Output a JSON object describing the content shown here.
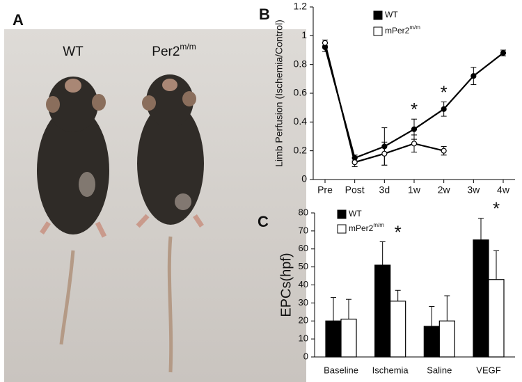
{
  "panel_a": {
    "label": "A",
    "left_label": "WT",
    "right_label": "Per2",
    "right_label_superscript": "m/m"
  },
  "chart_data": [
    {
      "type": "line",
      "panel_label": "B",
      "y_label": "Limb Perfusion (Ischemia/Control)",
      "categories": [
        "Pre",
        "Post",
        "3d",
        "1w",
        "2w",
        "3w",
        "4w"
      ],
      "series": [
        {
          "name": "WT",
          "color": "#000000",
          "marker_fill": "#000000",
          "values": [
            0.92,
            0.15,
            0.23,
            0.35,
            0.49,
            0.72,
            0.88
          ],
          "errors": [
            0.03,
            0.02,
            0.13,
            0.07,
            0.05,
            0.06,
            0.02
          ]
        },
        {
          "name": "mPer2",
          "name_superscript": "m/m",
          "color": "#000000",
          "marker_fill": "#ffffff",
          "values": [
            0.95,
            0.12,
            0.18,
            0.25,
            0.2,
            null,
            null
          ],
          "errors": [
            0.02,
            0.03,
            0.08,
            0.06,
            0.03,
            null,
            null
          ]
        }
      ],
      "ylim": [
        0,
        1.2
      ],
      "yticks": [
        0,
        0.2,
        0.4,
        0.6,
        0.8,
        1,
        1.2
      ],
      "annotations": [
        {
          "text": "*",
          "x": "1w"
        },
        {
          "text": "*",
          "x": "2w"
        }
      ]
    },
    {
      "type": "bar",
      "panel_label": "C",
      "y_label": "EPCs(hpf)",
      "categories": [
        "Baseline",
        "Ischemia",
        "Saline",
        "VEGF"
      ],
      "series": [
        {
          "name": "WT",
          "color": "#000000",
          "values": [
            20,
            51,
            17,
            65
          ],
          "errors": [
            13,
            13,
            11,
            12
          ]
        },
        {
          "name": "mPer2",
          "name_superscript": "m/m",
          "color": "#ffffff",
          "values": [
            21,
            31,
            20,
            43
          ],
          "errors": [
            11,
            6,
            14,
            16
          ]
        }
      ],
      "ylim": [
        0,
        80
      ],
      "yticks": [
        0,
        10,
        20,
        30,
        40,
        50,
        60,
        70,
        80
      ],
      "annotations": [
        {
          "text": "*",
          "x": "Ischemia"
        },
        {
          "text": "*",
          "x": "VEGF"
        }
      ]
    }
  ]
}
